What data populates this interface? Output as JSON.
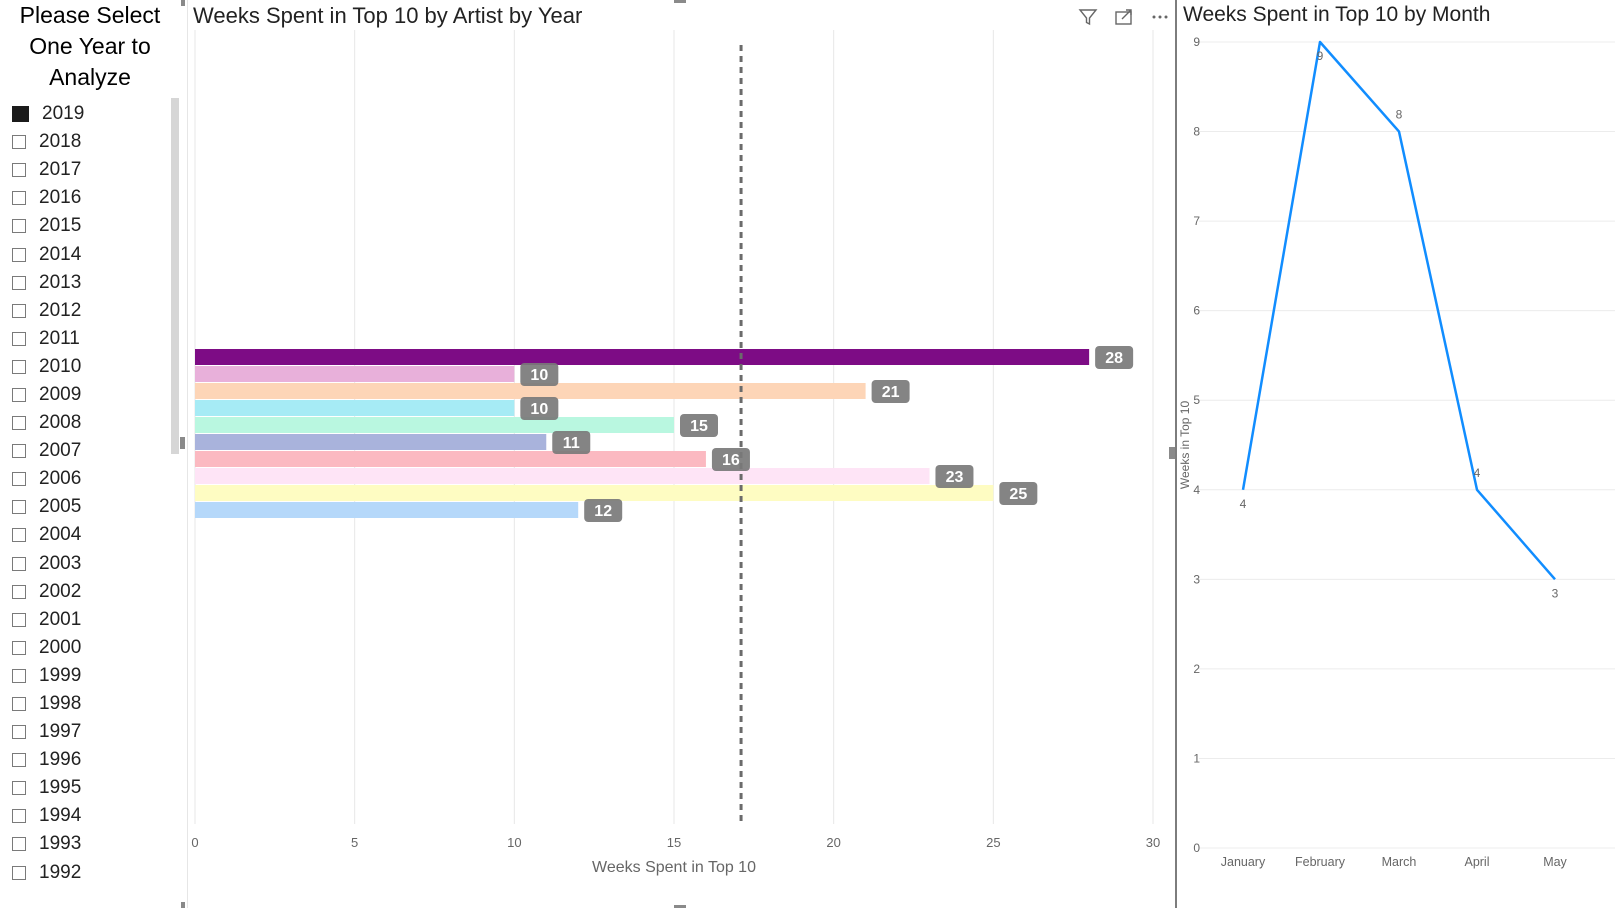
{
  "slicer": {
    "title_lines": [
      "Please Select",
      "One Year to",
      "Analyze"
    ],
    "selected": "2019",
    "years": [
      "2019",
      "2018",
      "2017",
      "2016",
      "2015",
      "2014",
      "2013",
      "2012",
      "2011",
      "2010",
      "2009",
      "2008",
      "2007",
      "2006",
      "2005",
      "2004",
      "2003",
      "2002",
      "2001",
      "2000",
      "1999",
      "1998",
      "1997",
      "1996",
      "1995",
      "1994",
      "1993",
      "1992"
    ]
  },
  "bar_visual": {
    "title": "Weeks Spent in Top 10 by Artist by Year",
    "icons": [
      "filter-icon",
      "focus-mode-icon",
      "more-options-icon"
    ]
  },
  "line_visual": {
    "title": "Weeks Spent in Top 10 by Month"
  },
  "chart_data": [
    {
      "type": "bar",
      "orientation": "horizontal",
      "title": "Weeks Spent in Top 10 by Artist by Year",
      "xlabel": "Weeks Spent in Top 10",
      "ylabel": "",
      "xlim": [
        0,
        30
      ],
      "x_ticks": [
        "0",
        "5",
        "10",
        "15",
        "20",
        "25",
        "30"
      ],
      "grid": true,
      "reference_line": 17.1,
      "values": [
        28,
        10,
        21,
        10,
        15,
        11,
        16,
        23,
        25,
        12
      ],
      "colors": [
        "#7d0c85",
        "#e8b0da",
        "#fdd5b7",
        "#a6ebf5",
        "#b9f7e0",
        "#a9b3dc",
        "#fbb9c1",
        "#fee4f6",
        "#fefcc2",
        "#b5d8fa"
      ],
      "data_labels": [
        "28",
        "10",
        "21",
        "10",
        "15",
        "11",
        "16",
        "23",
        "25",
        "12"
      ]
    },
    {
      "type": "line",
      "title": "Weeks Spent in Top 10 by Month",
      "xlabel": "",
      "ylabel": "Weeks in Top 10",
      "categories": [
        "January",
        "February",
        "March",
        "April",
        "May"
      ],
      "values": [
        4,
        9,
        8,
        4,
        3
      ],
      "data_labels": [
        "4",
        "9",
        "8",
        "4",
        "3"
      ],
      "ylim": [
        0,
        9
      ],
      "y_ticks": [
        "0",
        "1",
        "2",
        "3",
        "4",
        "5",
        "6",
        "7",
        "8",
        "9"
      ],
      "grid": true,
      "line_color": "#118dff"
    }
  ]
}
